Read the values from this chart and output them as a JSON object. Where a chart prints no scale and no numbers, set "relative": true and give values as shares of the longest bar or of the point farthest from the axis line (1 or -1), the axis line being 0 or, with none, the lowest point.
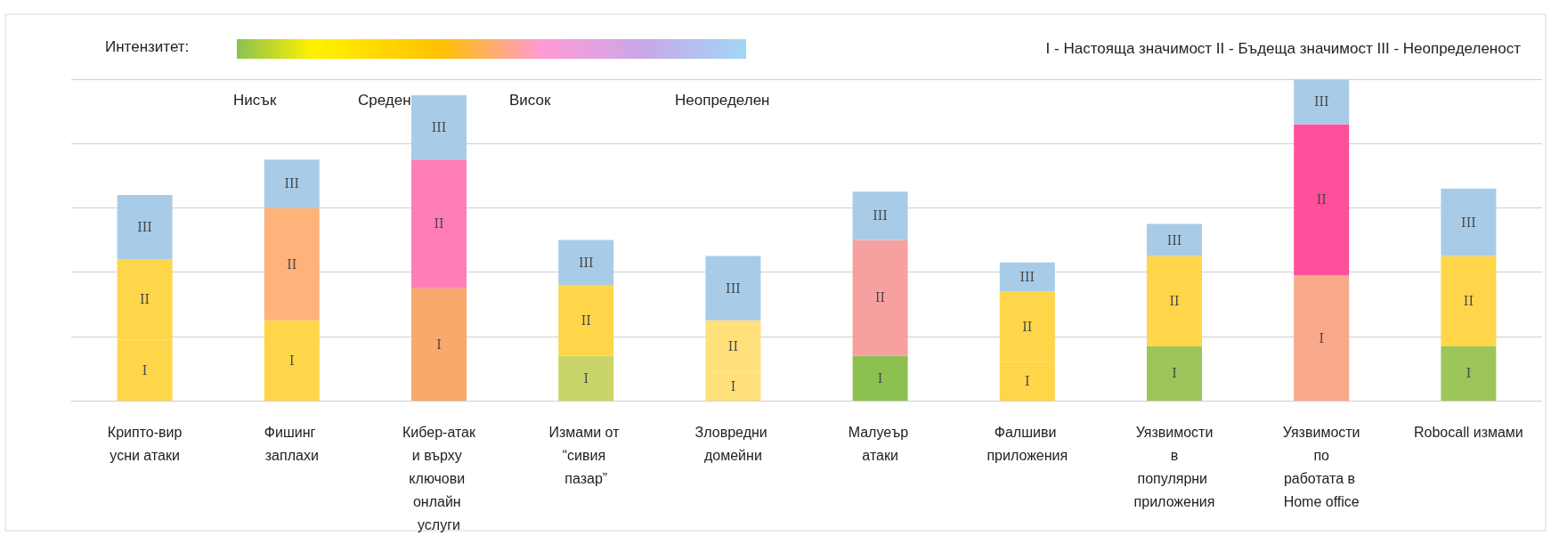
{
  "chart_data": {
    "type": "bar",
    "stacked": true,
    "relative": true,
    "grid": "y",
    "categories": [
      "Крипто-вирусни атаки",
      "Фишинг заплахи",
      "Кибер-атаки върху ключови онлайн услуги",
      "Измами от “сивия пазар”",
      "Зловредни домейни",
      "Малуеър атаки",
      "Фалшиви приложения",
      "Уязвимости в популярни приложения",
      "Уязвимости по работата в Home office",
      "Robocall измами"
    ],
    "series": [
      {
        "name": "I",
        "colors": [
          "#ffd54a",
          "#ffd54a",
          "#f9a96b",
          "#c9d46a",
          "#ffe07a",
          "#8cc152",
          "#ffd54a",
          "#9cc55a",
          "#f7a98a",
          "#9cc55a"
        ],
        "values": [
          0.19,
          0.25,
          0.35,
          0.14,
          0.09,
          0.14,
          0.12,
          0.17,
          0.39,
          0.17
        ]
      },
      {
        "name": "II",
        "colors": [
          "#ffd54a",
          "#ffb27a",
          "#ff7eb6",
          "#ffd54a",
          "#ffe07a",
          "#f7a0a0",
          "#ffd54a",
          "#ffd54a",
          "#ff4f9a",
          "#ffd54a"
        ],
        "values": [
          0.25,
          0.35,
          0.4,
          0.22,
          0.16,
          0.36,
          0.22,
          0.28,
          0.47,
          0.28
        ]
      },
      {
        "name": "III",
        "colors": [
          "#a8cce8",
          "#a8cce8",
          "#a8cce8",
          "#a8cce8",
          "#a8cce8",
          "#a8cce8",
          "#a8cce8",
          "#a8cce8",
          "#a8cce8",
          "#a8cce8"
        ],
        "values": [
          0.2,
          0.15,
          0.2,
          0.14,
          0.2,
          0.15,
          0.09,
          0.1,
          0.14,
          0.21
        ]
      }
    ],
    "annotations": [
      "Интензитет:",
      "Нисък",
      "Среден",
      "Висок",
      "Неопределен",
      "I - Настояща значимост II - Бъдеща значимост III - Неопределеност"
    ]
  }
}
